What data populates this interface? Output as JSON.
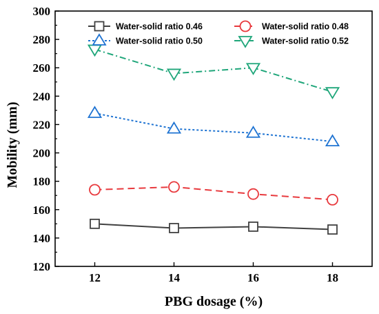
{
  "chart_data": {
    "type": "line",
    "title": "",
    "xlabel": "PBG dosage (%)",
    "ylabel": "Mobility (mm)",
    "x": [
      12,
      14,
      16,
      18
    ],
    "xticks": [
      "12",
      "14",
      "16",
      "18"
    ],
    "ylim": [
      120,
      300
    ],
    "yticks": [
      "120",
      "140",
      "160",
      "180",
      "200",
      "220",
      "240",
      "260",
      "280",
      "300"
    ],
    "grid": false,
    "legend_position": "top",
    "series": [
      {
        "name": "Water-solid ratio  0.46",
        "values": [
          150,
          147,
          148,
          146
        ],
        "color": "#404040",
        "marker": "square",
        "dash": "solid"
      },
      {
        "name": "Water-solid ratio  0.48",
        "values": [
          174,
          176,
          171,
          167
        ],
        "color": "#e8393d",
        "marker": "circle",
        "dash": "dashed"
      },
      {
        "name": "Water-solid ratio  0.50",
        "values": [
          228,
          217,
          214,
          208
        ],
        "color": "#1e73d2",
        "marker": "triangle-up",
        "dash": "dotted"
      },
      {
        "name": "Water-solid ratio  0.52",
        "values": [
          273,
          256,
          260,
          243
        ],
        "color": "#1fa67a",
        "marker": "triangle-down",
        "dash": "dashdot"
      }
    ]
  }
}
